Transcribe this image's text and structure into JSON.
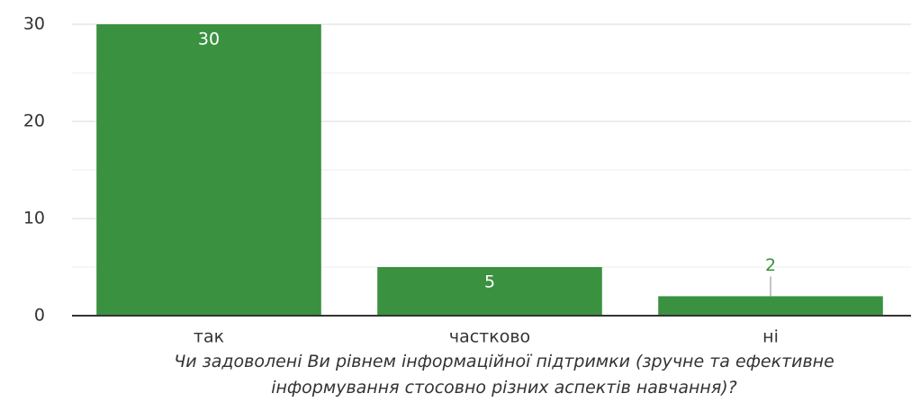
{
  "chart_data": {
    "type": "bar",
    "categories": [
      "так",
      "частково",
      "ні"
    ],
    "values": [
      30,
      5,
      2
    ],
    "color": "#3a9140",
    "ylim": [
      0,
      30
    ],
    "yticks": [
      0,
      10,
      20,
      30
    ],
    "minor_yticks": [
      5,
      15,
      25
    ],
    "grid": true,
    "xlabel": "Чи задоволені Ви рівнем інформаційної підтримки (зручне та ефективне інформування стосовно різних аспектів навчання)?"
  }
}
